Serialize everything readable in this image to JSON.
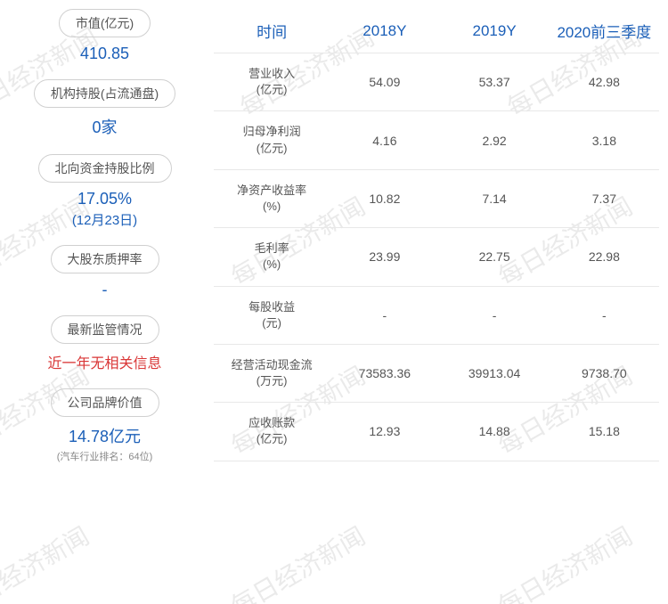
{
  "watermark_text": "每日经济新闻",
  "left_panel": {
    "blocks": [
      {
        "label": "市值(亿元)",
        "value": "410.85",
        "value_class": "info-value"
      },
      {
        "label": "机构持股(占流通盘)",
        "value": "0家",
        "value_class": "info-value"
      },
      {
        "label": "北向资金持股比例",
        "value": "17.05%",
        "sub": "(12月23日)",
        "value_class": "info-value"
      },
      {
        "label": "大股东质押率",
        "value": "-",
        "value_class": "info-value-dash"
      },
      {
        "label": "最新监管情况",
        "value": "近一年无相关信息",
        "value_class": "info-value-red"
      },
      {
        "label": "公司品牌价值",
        "value": "14.78亿元",
        "note": "(汽车行业排名：64位)",
        "value_class": "info-value"
      }
    ]
  },
  "table": {
    "header_time": "时间",
    "columns": [
      "2018Y",
      "2019Y",
      "2020前三季度"
    ],
    "rows": [
      {
        "label": "营业收入",
        "unit": "(亿元)",
        "values": [
          "54.09",
          "53.37",
          "42.98"
        ]
      },
      {
        "label": "归母净利润",
        "unit": "(亿元)",
        "values": [
          "4.16",
          "2.92",
          "3.18"
        ]
      },
      {
        "label": "净资产收益率",
        "unit": "(%)",
        "values": [
          "10.82",
          "7.14",
          "7.37"
        ]
      },
      {
        "label": "毛利率",
        "unit": "(%)",
        "values": [
          "23.99",
          "22.75",
          "22.98"
        ]
      },
      {
        "label": "每股收益",
        "unit": "(元)",
        "values": [
          "-",
          "-",
          "-"
        ]
      },
      {
        "label": "经营活动现金流",
        "unit": "(万元)",
        "values": [
          "73583.36",
          "39913.04",
          "9738.70"
        ]
      },
      {
        "label": "应收账款",
        "unit": "(亿元)",
        "values": [
          "12.93",
          "14.88",
          "15.18"
        ]
      }
    ]
  },
  "colors": {
    "primary_blue": "#1b5fb8",
    "text_gray": "#555555",
    "border_gray": "#d0d0d0",
    "row_border": "#e8e8e8",
    "red": "#d93636",
    "watermark": "rgba(180,180,180,0.28)"
  }
}
